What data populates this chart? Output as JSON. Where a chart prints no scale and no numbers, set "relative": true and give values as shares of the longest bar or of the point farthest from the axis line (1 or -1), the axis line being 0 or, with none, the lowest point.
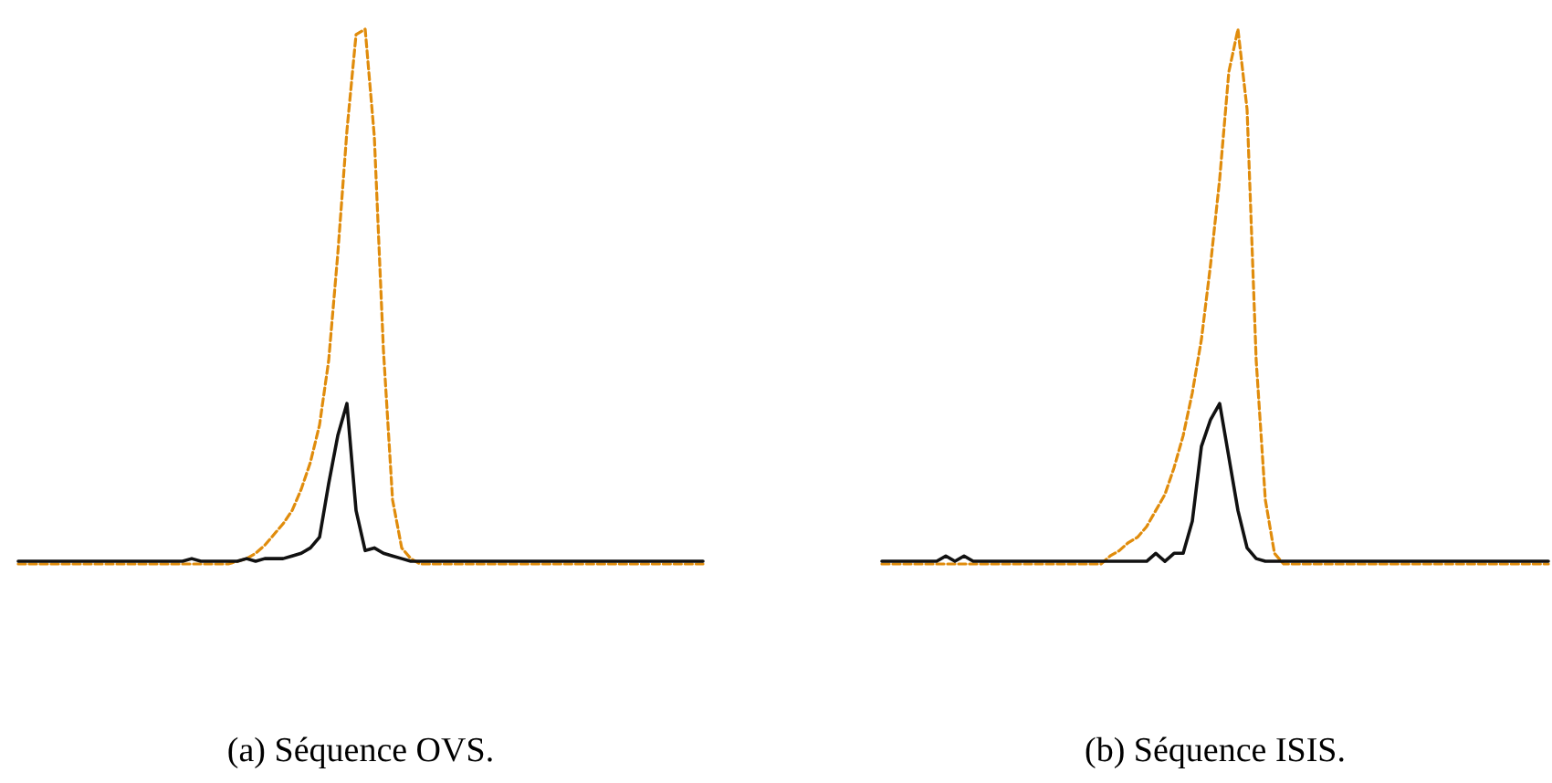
{
  "chart_data": [
    {
      "type": "line",
      "relative": true,
      "annotations": [
        "(a) Séquence OVS."
      ],
      "categories": [
        null,
        null,
        null,
        null,
        null,
        null,
        null,
        null,
        null,
        null,
        null,
        null,
        null,
        null,
        null,
        null,
        null,
        null,
        null,
        null,
        null,
        null,
        null,
        null,
        null,
        null,
        null,
        null,
        null,
        null,
        null,
        null,
        null,
        null,
        null,
        null,
        null,
        null,
        null,
        null,
        null,
        null,
        null,
        null,
        null,
        null,
        null,
        null,
        null,
        null,
        null,
        null,
        null,
        null,
        null,
        null,
        null,
        null,
        null,
        null,
        null,
        null,
        null,
        null,
        null,
        null,
        null,
        null,
        null,
        null,
        null,
        null,
        null,
        null,
        null,
        null
      ],
      "series": [
        {
          "color": "#e08c0c",
          "line_style": "dashed",
          "values": [
            0,
            0,
            0,
            0,
            0,
            0,
            0,
            0,
            0,
            0,
            0,
            0,
            0,
            0,
            0,
            0,
            0,
            0,
            0,
            0,
            0,
            0,
            0,
            0,
            0.005,
            0.01,
            0.02,
            0.035,
            0.055,
            0.075,
            0.1,
            0.14,
            0.19,
            0.26,
            0.38,
            0.58,
            0.81,
            0.99,
            1.0,
            0.8,
            0.4,
            0.12,
            0.03,
            0.01,
            0,
            0,
            0,
            0,
            0,
            0,
            0,
            0,
            0,
            0,
            0,
            0,
            0,
            0,
            0,
            0,
            0,
            0,
            0,
            0,
            0,
            0,
            0,
            0,
            0,
            0,
            0,
            0,
            0,
            0,
            0,
            0
          ]
        },
        {
          "color": "#111111",
          "line_style": "solid",
          "values": [
            0.005,
            0.005,
            0.005,
            0.005,
            0.005,
            0.005,
            0.005,
            0.005,
            0.005,
            0.005,
            0.005,
            0.005,
            0.005,
            0.005,
            0.005,
            0.005,
            0.005,
            0.005,
            0.005,
            0.01,
            0.005,
            0.005,
            0.005,
            0.005,
            0.005,
            0.01,
            0.005,
            0.01,
            0.01,
            0.01,
            0.015,
            0.02,
            0.03,
            0.05,
            0.15,
            0.24,
            0.3,
            0.1,
            0.025,
            0.03,
            0.02,
            0.015,
            0.01,
            0.005,
            0.005,
            0.005,
            0.005,
            0.005,
            0.005,
            0.005,
            0.005,
            0.005,
            0.005,
            0.005,
            0.005,
            0.005,
            0.005,
            0.005,
            0.005,
            0.005,
            0.005,
            0.005,
            0.005,
            0.005,
            0.005,
            0.005,
            0.005,
            0.005,
            0.005,
            0.005,
            0.005,
            0.005,
            0.005,
            0.005,
            0.005,
            0.005
          ]
        }
      ]
    },
    {
      "type": "line",
      "relative": true,
      "annotations": [
        "(b) Séquence ISIS."
      ],
      "categories": [
        null,
        null,
        null,
        null,
        null,
        null,
        null,
        null,
        null,
        null,
        null,
        null,
        null,
        null,
        null,
        null,
        null,
        null,
        null,
        null,
        null,
        null,
        null,
        null,
        null,
        null,
        null,
        null,
        null,
        null,
        null,
        null,
        null,
        null,
        null,
        null,
        null,
        null,
        null,
        null,
        null,
        null,
        null,
        null,
        null,
        null,
        null,
        null,
        null,
        null,
        null,
        null,
        null,
        null,
        null,
        null,
        null,
        null,
        null,
        null,
        null,
        null,
        null,
        null,
        null,
        null,
        null,
        null,
        null,
        null,
        null,
        null,
        null,
        null
      ],
      "series": [
        {
          "color": "#e08c0c",
          "line_style": "dashed",
          "values": [
            0,
            0,
            0,
            0,
            0,
            0,
            0,
            0,
            0,
            0,
            0,
            0,
            0,
            0,
            0,
            0,
            0,
            0,
            0,
            0,
            0,
            0,
            0,
            0,
            0,
            0.015,
            0.025,
            0.04,
            0.05,
            0.07,
            0.1,
            0.13,
            0.18,
            0.24,
            0.32,
            0.42,
            0.56,
            0.72,
            0.92,
            1.0,
            0.85,
            0.38,
            0.12,
            0.02,
            0,
            0,
            0,
            0,
            0,
            0,
            0,
            0,
            0,
            0,
            0,
            0,
            0,
            0,
            0,
            0,
            0,
            0,
            0,
            0,
            0,
            0,
            0,
            0,
            0,
            0,
            0,
            0,
            0,
            0
          ]
        },
        {
          "color": "#111111",
          "line_style": "solid",
          "values": [
            0.005,
            0.005,
            0.005,
            0.005,
            0.005,
            0.005,
            0.005,
            0.015,
            0.005,
            0.015,
            0.005,
            0.005,
            0.005,
            0.005,
            0.005,
            0.005,
            0.005,
            0.005,
            0.005,
            0.005,
            0.005,
            0.005,
            0.005,
            0.005,
            0.005,
            0.005,
            0.005,
            0.005,
            0.005,
            0.005,
            0.02,
            0.005,
            0.02,
            0.02,
            0.08,
            0.22,
            0.27,
            0.3,
            0.2,
            0.1,
            0.03,
            0.01,
            0.005,
            0.005,
            0.005,
            0.005,
            0.005,
            0.005,
            0.005,
            0.005,
            0.005,
            0.005,
            0.005,
            0.005,
            0.005,
            0.005,
            0.005,
            0.005,
            0.005,
            0.005,
            0.005,
            0.005,
            0.005,
            0.005,
            0.005,
            0.005,
            0.005,
            0.005,
            0.005,
            0.005,
            0.005,
            0.005,
            0.005,
            0.005
          ]
        }
      ]
    }
  ]
}
